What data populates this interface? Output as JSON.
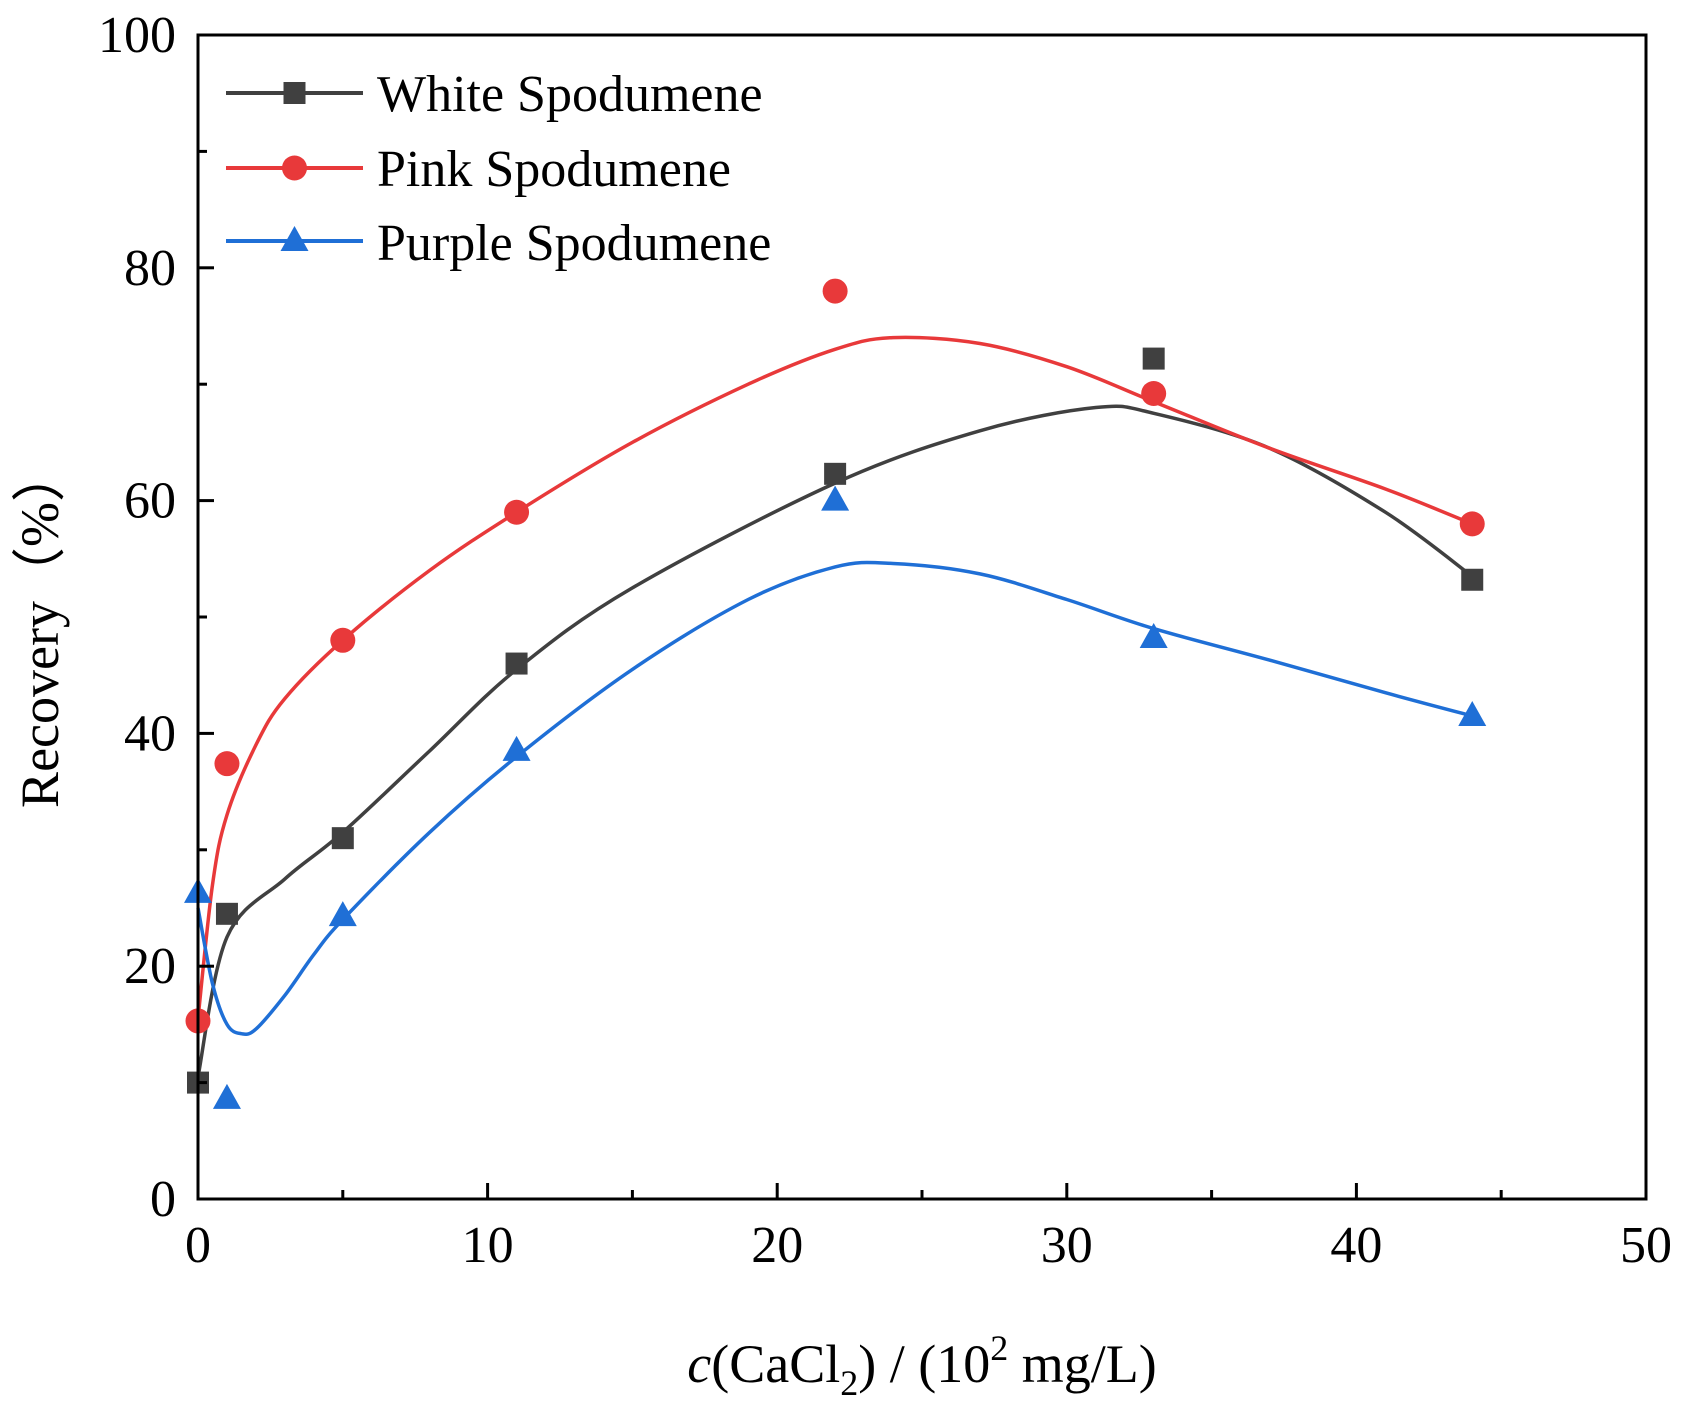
{
  "chart_data": {
    "type": "line",
    "title": "",
    "xlabel": {
      "italic": "c",
      "open": "(CaCl",
      "sub": "2",
      "middle": ") / (10",
      "sup": "2",
      "end": " mg/L)"
    },
    "ylabel": "Recovery（%）",
    "xlim": [
      0,
      50
    ],
    "ylim": [
      0,
      100
    ],
    "x_ticks": [
      "0",
      "10",
      "20",
      "30",
      "40",
      "50"
    ],
    "y_ticks": [
      "0",
      "20",
      "40",
      "60",
      "80",
      "100"
    ],
    "grid": false,
    "legend_position": "top-left",
    "series": [
      {
        "name": "White Spodumene",
        "color": "#404040",
        "marker": "square",
        "x": [
          0,
          1,
          5,
          11,
          22,
          33,
          44
        ],
        "y": [
          10,
          24.5,
          31,
          46,
          62.3,
          72.2,
          53.2
        ],
        "fit_x": [
          0,
          1,
          3,
          5,
          8,
          11,
          15,
          22,
          27,
          31,
          33,
          37,
          41,
          44
        ],
        "fit_y": [
          10.5,
          22.5,
          27.5,
          31.5,
          38.5,
          45.5,
          52.5,
          61.5,
          66.0,
          68.0,
          67.5,
          64.5,
          59.0,
          53.5
        ]
      },
      {
        "name": "Pink Spodumene",
        "color": "#e8393a",
        "marker": "circle",
        "x": [
          0,
          1,
          5,
          11,
          22,
          33,
          44
        ],
        "y": [
          15.3,
          37.4,
          48,
          59,
          78,
          69.2,
          58
        ],
        "fit_x": [
          0,
          0.5,
          1,
          2,
          3,
          5,
          8,
          11,
          15,
          19,
          22,
          24,
          27,
          30,
          33,
          37,
          41,
          44
        ],
        "fit_y": [
          15.5,
          27.0,
          33.0,
          39.0,
          43.0,
          48.0,
          54.0,
          59.0,
          65.0,
          70.0,
          73.0,
          74.0,
          73.5,
          71.5,
          68.5,
          64.5,
          61.0,
          58.0
        ]
      },
      {
        "name": "Purple Spodumene",
        "color": "#1f6fd6",
        "marker": "triangle",
        "x": [
          0,
          1,
          5,
          11,
          22,
          33,
          44
        ],
        "y": [
          26.3,
          8.6,
          24.3,
          38.5,
          60,
          48.2,
          41.5
        ],
        "fit_x": [
          0,
          0.5,
          1,
          1.5,
          2,
          3,
          4,
          5,
          8,
          11,
          15,
          19,
          22,
          24,
          27,
          30,
          33,
          37,
          41,
          44
        ],
        "fit_y": [
          25.0,
          18.5,
          15.0,
          14.2,
          14.6,
          17.5,
          21.0,
          24.0,
          31.5,
          38.0,
          45.5,
          51.5,
          54.3,
          54.6,
          53.7,
          51.5,
          49.0,
          46.3,
          43.5,
          41.5
        ]
      }
    ]
  }
}
